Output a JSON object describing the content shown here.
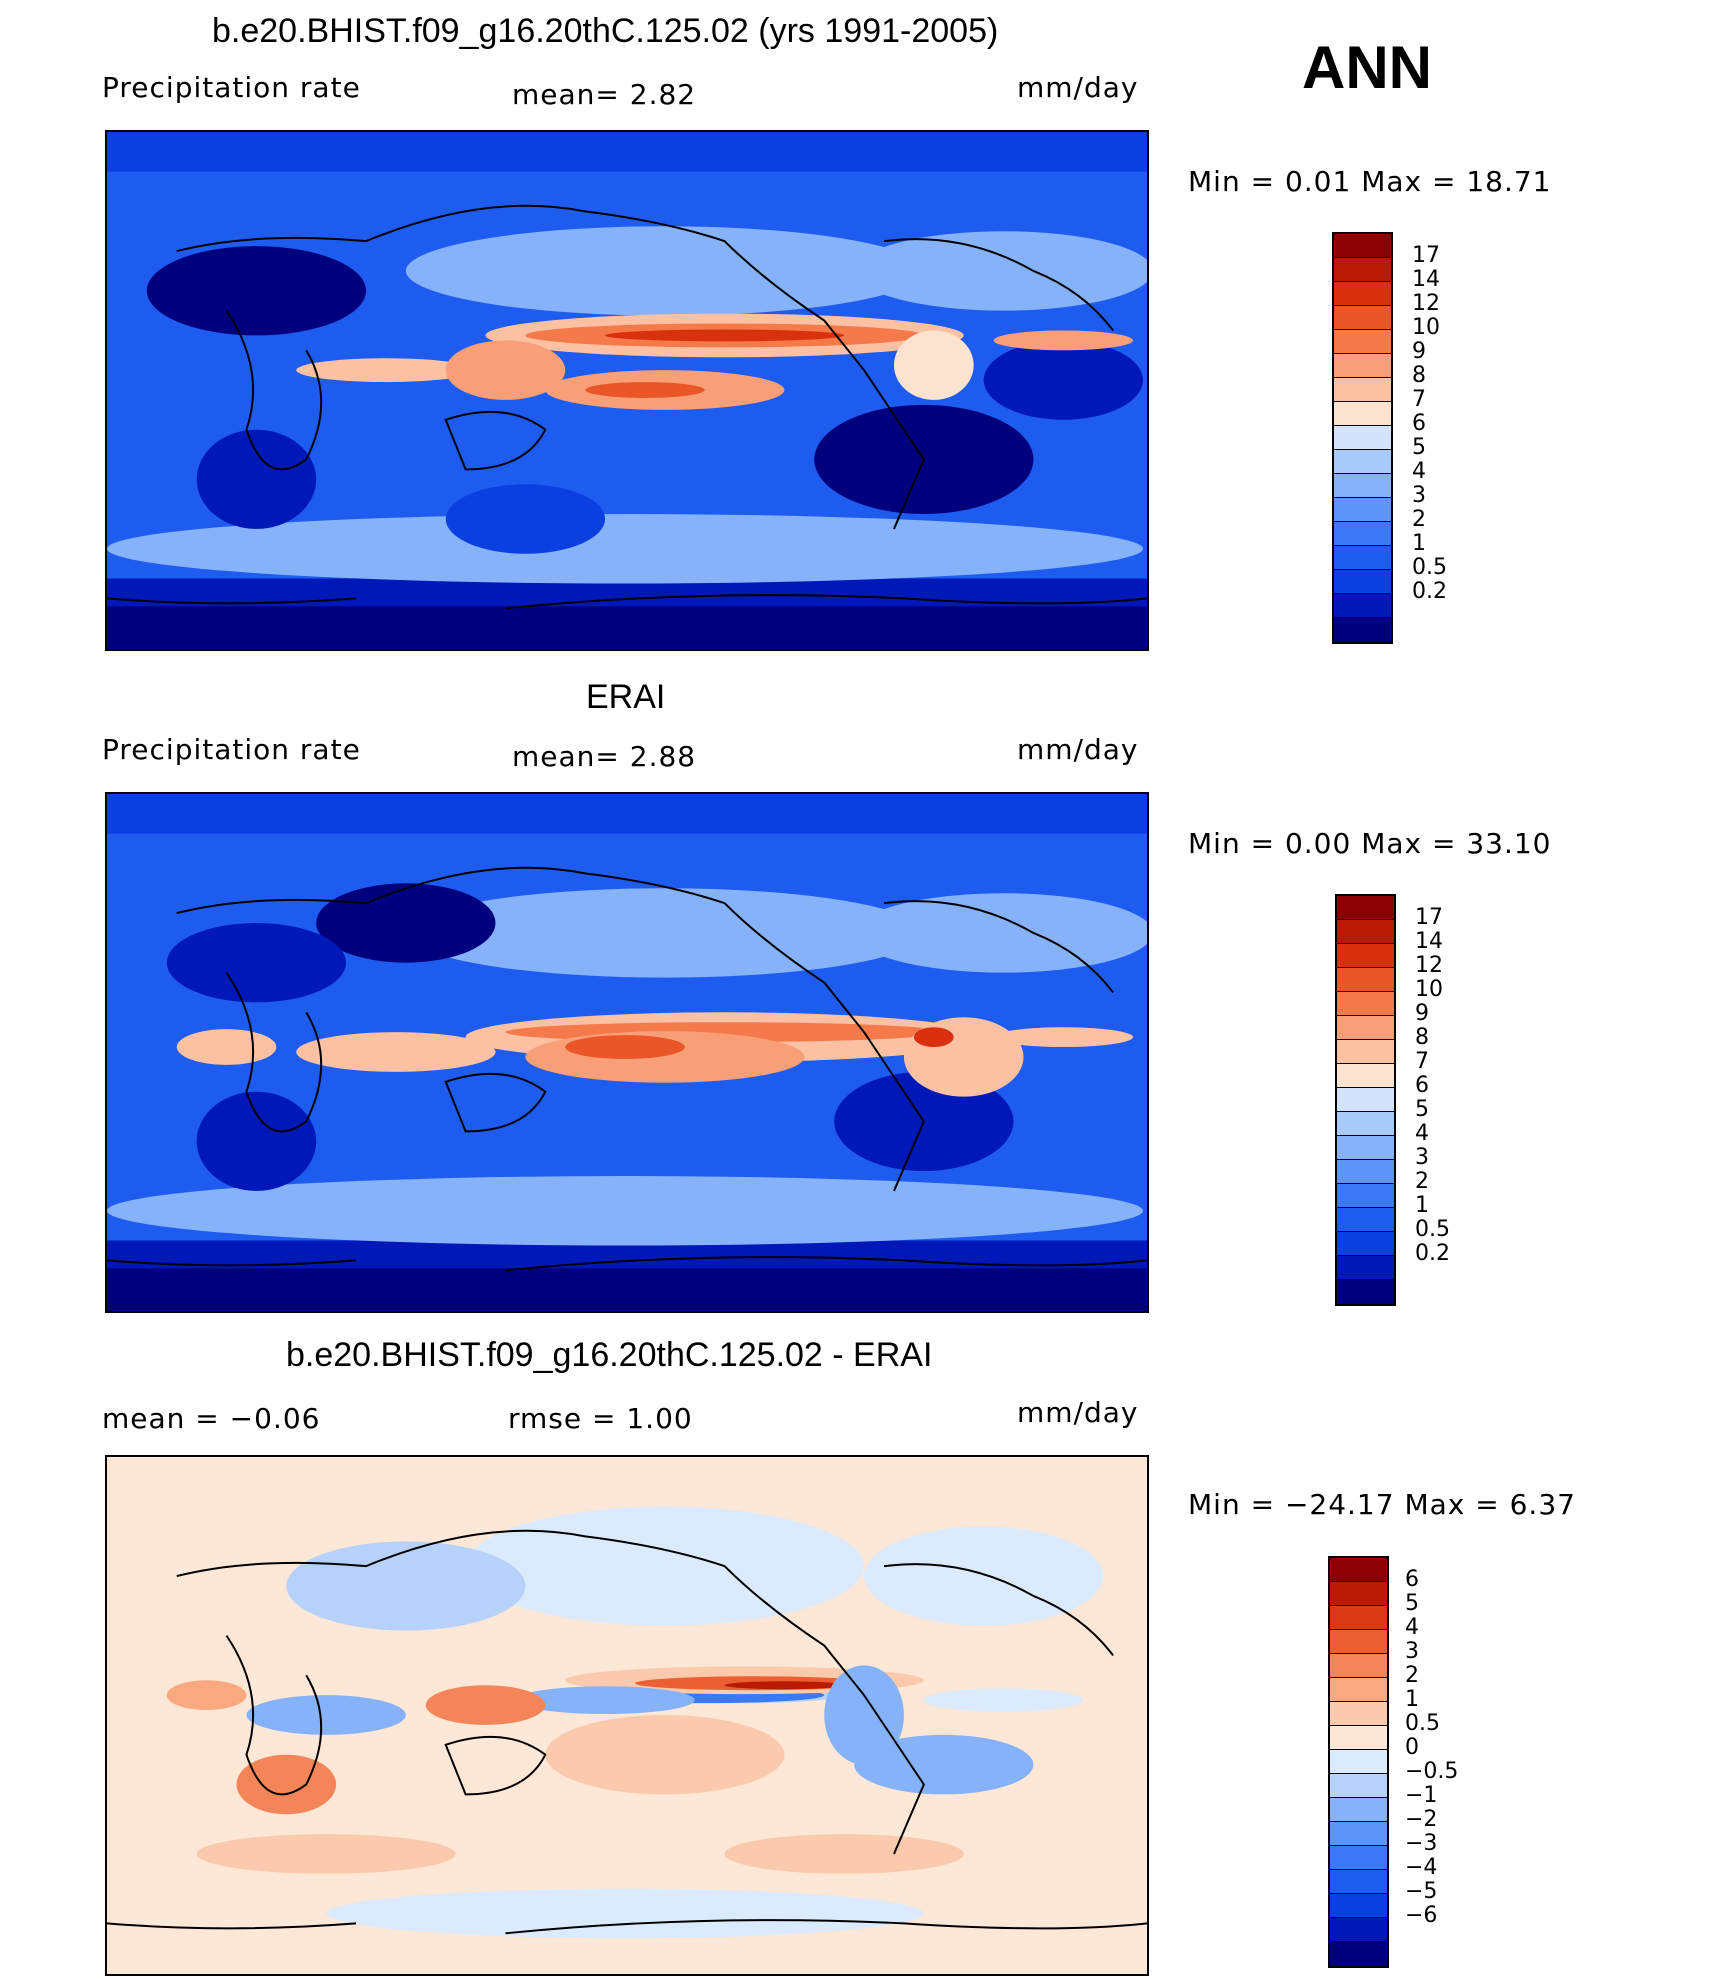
{
  "season": "ANN",
  "colors": {
    "precip_scale": [
      "#00007f",
      "#0018b8",
      "#0a3fe0",
      "#1e5cf0",
      "#3a78f5",
      "#5c95f7",
      "#86b2f9",
      "#a9cbfb",
      "#d1e4fc",
      "#fbe3d0",
      "#fbc1a2",
      "#f99f78",
      "#f47a4c",
      "#eb5628",
      "#d93010",
      "#b81a05",
      "#8b0000"
    ],
    "diff_scale": [
      "#00007f",
      "#0018b8",
      "#0a3fe0",
      "#1e5cf0",
      "#3a78f5",
      "#5c95f7",
      "#86b2f9",
      "#b6d2fb",
      "#dbeafd",
      "#fde7d6",
      "#fbc9ab",
      "#f9a880",
      "#f48559",
      "#eb5f33",
      "#d93a12",
      "#b81a05",
      "#8b0000"
    ]
  },
  "panels": [
    {
      "title": "b.e20.BHIST.f09_g16.20thC.125.02 (yrs 1991-2005)",
      "left_label": "Precipitation  rate",
      "center_label": "mean=    2.82",
      "units": "mm/day",
      "min_max": "Min  =    0.01  Max  =   18.71",
      "colorbar_labels": [
        "17",
        "14",
        "12",
        "10",
        "9",
        "8",
        "7",
        "6",
        "5",
        "4",
        "3",
        "2",
        "1",
        "0.5",
        "0.2"
      ]
    },
    {
      "title": "ERAI",
      "left_label": "Precipitation  rate",
      "center_label": "mean=    2.88",
      "units": "mm/day",
      "min_max": "Min  =    0.00  Max  =   33.10",
      "colorbar_labels": [
        "17",
        "14",
        "12",
        "10",
        "9",
        "8",
        "7",
        "6",
        "5",
        "4",
        "3",
        "2",
        "1",
        "0.5",
        "0.2"
      ]
    },
    {
      "title": "b.e20.BHIST.f09_g16.20thC.125.02 - ERAI",
      "left_label": "mean  =   −0.06",
      "center_label": "rmse  =    1.00",
      "units": "mm/day",
      "min_max": "Min  = −24.17  Max  =    6.37",
      "colorbar_labels": [
        "6",
        "5",
        "4",
        "3",
        "2",
        "1",
        "0.5",
        "0",
        "−0.5",
        "−1",
        "−2",
        "−3",
        "−4",
        "−5",
        "−6"
      ]
    }
  ]
}
